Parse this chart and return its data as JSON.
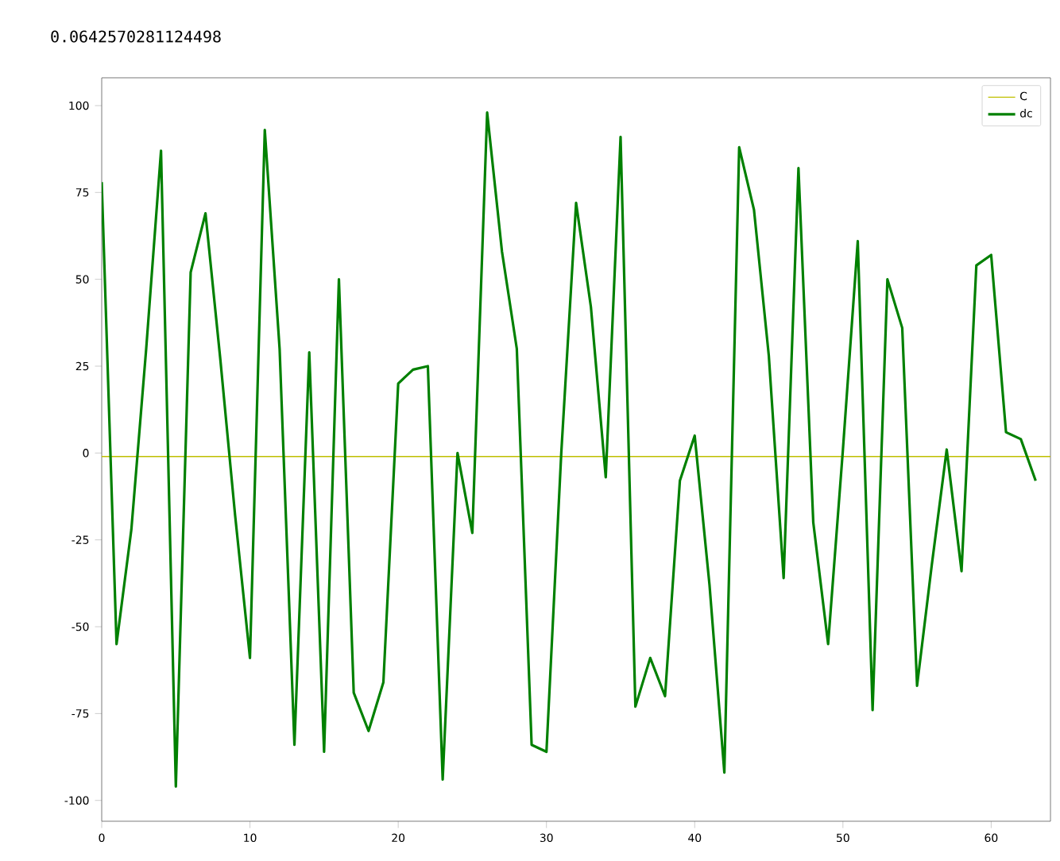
{
  "chart_data": {
    "type": "line",
    "annotations": [
      "0.0642570281124498"
    ],
    "x": [
      0,
      1,
      2,
      3,
      4,
      5,
      6,
      7,
      8,
      9,
      10,
      11,
      12,
      13,
      14,
      15,
      16,
      17,
      18,
      19,
      20,
      21,
      22,
      23,
      24,
      25,
      26,
      27,
      28,
      29,
      30,
      31,
      32,
      33,
      34,
      35,
      36,
      37,
      38,
      39,
      40,
      41,
      42,
      43,
      44,
      45,
      46,
      47,
      48,
      49,
      50,
      51,
      52,
      53,
      54,
      55,
      56,
      57,
      58,
      59,
      60,
      61,
      62,
      63
    ],
    "series": [
      {
        "name": "C",
        "color": "#bfbf00",
        "x": [
          0,
          64
        ],
        "values": [
          -1,
          -1
        ]
      },
      {
        "name": "dc",
        "color": "#008000",
        "values": [
          78,
          -55,
          -22,
          30,
          87,
          -96,
          52,
          69,
          27,
          -18,
          -59,
          93,
          30,
          -84,
          29,
          -86,
          50,
          -69,
          -80,
          -66,
          20,
          24,
          25,
          -94,
          0,
          -23,
          98,
          58,
          30,
          -84,
          -86,
          0,
          72,
          42,
          -7,
          91,
          -73,
          -59,
          -70,
          -8,
          5,
          -38,
          -92,
          88,
          70,
          28,
          -36,
          82,
          -20,
          -55,
          1,
          61,
          -74,
          50,
          36,
          -67,
          -32,
          1,
          -34,
          54,
          57,
          6,
          4,
          -8
        ]
      }
    ],
    "xlim": [
      0,
      64
    ],
    "ylim": [
      -106,
      108
    ],
    "xticks": [
      0,
      10,
      20,
      30,
      40,
      50,
      60
    ],
    "yticks": [
      -100,
      -75,
      -50,
      -25,
      0,
      25,
      50,
      75,
      100
    ],
    "legend": "top right",
    "grid": false,
    "marker": "none",
    "line_style": "solid"
  }
}
